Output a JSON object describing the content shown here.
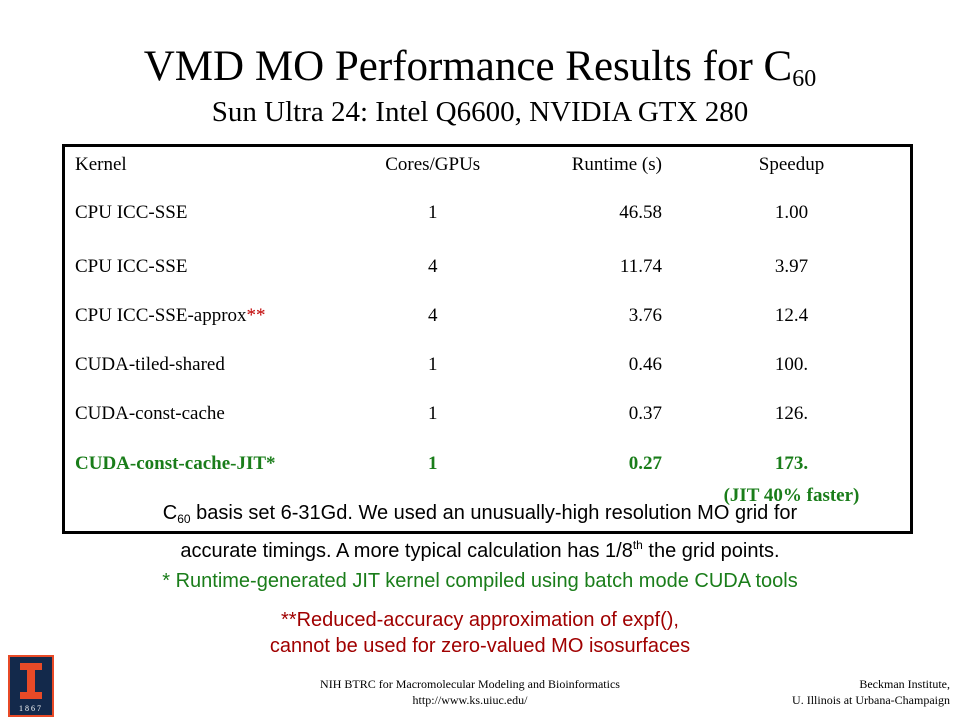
{
  "title": {
    "main": "VMD MO Performance Results for C",
    "sub": "60"
  },
  "subtitle": "Sun Ultra 24: Intel Q6600, NVIDIA GTX 280",
  "table": {
    "headers": [
      "Kernel",
      "Cores/GPUs",
      "Runtime (s)",
      "Speedup"
    ],
    "rows": [
      {
        "kernel": "CPU ICC-SSE",
        "cores": "1",
        "runtime": "46.58",
        "speedup": "1.00"
      },
      {
        "kernel": "CPU ICC-SSE",
        "cores": "4",
        "runtime": "11.74",
        "speedup": "3.97"
      },
      {
        "kernel": "CPU ICC-SSE-approx",
        "kernel_mark": "**",
        "cores": "4",
        "runtime": "3.76",
        "speedup": "12.4"
      },
      {
        "kernel": "CUDA-tiled-shared",
        "cores": "1",
        "runtime": "0.46",
        "speedup": "100."
      },
      {
        "kernel": "CUDA-const-cache",
        "cores": "1",
        "runtime": "0.37",
        "speedup": "126."
      },
      {
        "kernel": "CUDA-const-cache-JIT*",
        "cores": "1",
        "runtime": "0.27",
        "speedup": "173.",
        "speedup_note": "(JIT 40% faster)"
      }
    ]
  },
  "notes": {
    "basis_prefix": "C",
    "basis_sub": "60",
    "basis_text": " basis set 6-31Gd.  We used an unusually-high resolution MO grid for",
    "line2_pre": "accurate timings.  A more typical calculation has 1/8",
    "line2_sup": "th",
    "line2_post": " the grid points.",
    "jit_note": "* Runtime-generated JIT kernel compiled using batch mode CUDA tools",
    "approx_line1": "**Reduced-accuracy approximation of expf(),",
    "approx_line2": "cannot be used for zero-valued MO isosurfaces"
  },
  "footer": {
    "center_line1": "NIH BTRC for Macromolecular Modeling and Bioinformatics",
    "center_line2": "http://www.ks.uiuc.edu/",
    "right_line1": "Beckman Institute,",
    "right_line2": "U. Illinois at Urbana-Champaign",
    "logo_year": "1867"
  },
  "colors": {
    "green": "#1a7d1a",
    "red": "#c00000",
    "illinois_blue": "#13294b",
    "illinois_orange": "#e84a27"
  }
}
